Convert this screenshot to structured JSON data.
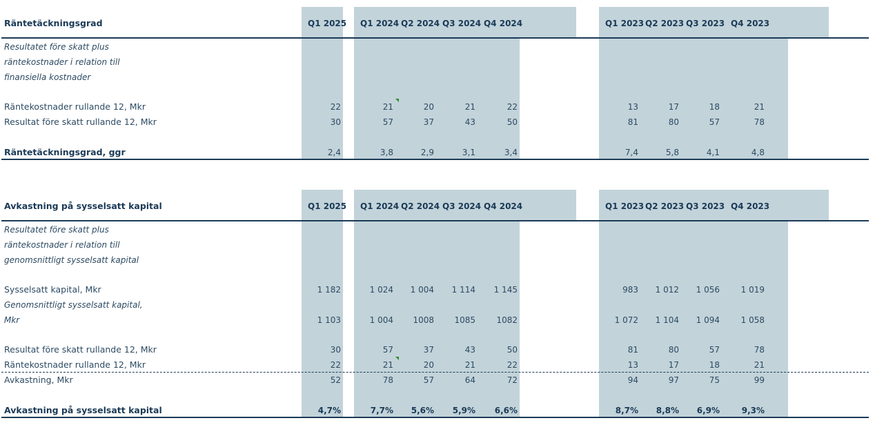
{
  "table1": {
    "title": "Räntetäckningsgrad",
    "headers": [
      "Q1 2025",
      "Q1 2024",
      "Q2 2024",
      "Q3 2024",
      "Q4 2024",
      "Q1 2023",
      "Q2 2023",
      "Q3 2023",
      "Q4 2023"
    ],
    "description": [
      "Resultatet före skatt plus",
      "räntekostnader i relation till",
      "finansiella kostnader"
    ],
    "rows": [
      {
        "label": "Räntekostnader rullande 12, Mkr",
        "values": [
          "22",
          "21",
          "20",
          "21",
          "22",
          "13",
          "17",
          "18",
          "21"
        ]
      },
      {
        "label": "Resultat före skatt rullande 12, Mkr",
        "values": [
          "30",
          "57",
          "37",
          "43",
          "50",
          "81",
          "80",
          "57",
          "78"
        ]
      }
    ],
    "total": {
      "label": "Räntetäckningsgrad, ggr",
      "values": [
        "2,4",
        "3,8",
        "2,9",
        "3,1",
        "3,4",
        "7,4",
        "5,8",
        "4,1",
        "4,8"
      ]
    }
  },
  "table2": {
    "title": "Avkastning på sysselsatt kapital",
    "headers": [
      "Q1 2025",
      "Q1 2024",
      "Q2 2024",
      "Q3 2024",
      "Q4 2024",
      "Q1 2023",
      "Q2 2023",
      "Q3 2023",
      "Q4 2023"
    ],
    "description": [
      "Resultatet före skatt plus",
      "räntekostnader i relation till",
      "genomsnittligt sysselsatt kapital"
    ],
    "row_capital": {
      "label": "Sysselsatt kapital, Mkr",
      "values": [
        "1 182",
        "1 024",
        "1 004",
        "1 114",
        "1 145",
        "983",
        "1 012",
        "1 056",
        "1 019"
      ]
    },
    "row_avg": {
      "label_line1": "Genomsnittligt sysselsatt kapital,",
      "label_line2": "Mkr",
      "values": [
        "1 103",
        "1 004",
        "1008",
        "1085",
        "1082",
        "1 072",
        "1 104",
        "1 094",
        "1 058"
      ]
    },
    "row_result": {
      "label": "Resultat före skatt rullande 12, Mkr",
      "values": [
        "30",
        "57",
        "37",
        "43",
        "50",
        "81",
        "80",
        "57",
        "78"
      ]
    },
    "row_interest": {
      "label": "Räntekostnader rullande 12, Mkr",
      "values": [
        "22",
        "21",
        "20",
        "21",
        "22",
        "13",
        "17",
        "18",
        "21"
      ]
    },
    "row_return": {
      "label": "Avkastning, Mkr",
      "values": [
        "52",
        "78",
        "57",
        "64",
        "72",
        "94",
        "97",
        "75",
        "99"
      ]
    },
    "total": {
      "label": "Avkastning på sysselsatt kapital",
      "values": [
        "4,7%",
        "7,7%",
        "5,6%",
        "5,9%",
        "6,6%",
        "8,7%",
        "8,8%",
        "6,9%",
        "9,3%"
      ]
    }
  },
  "colors": {
    "band": "#c2d3da",
    "rule": "#1b3a56",
    "text": "#2c4a62",
    "comment_flag": "#2e8b2e"
  }
}
